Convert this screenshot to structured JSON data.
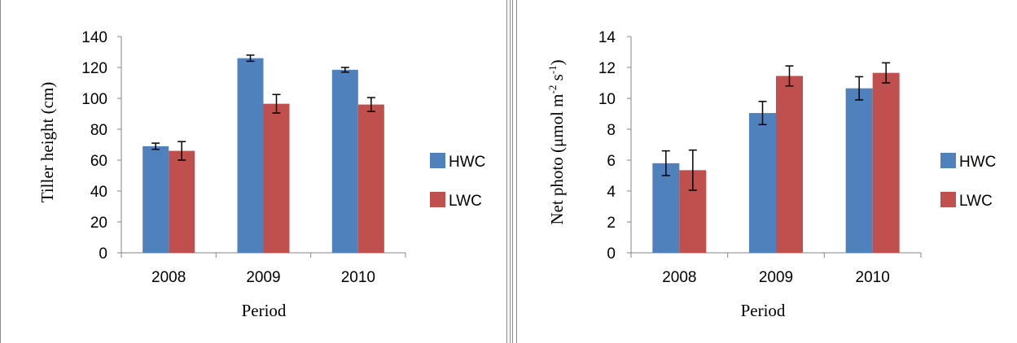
{
  "chart_data": [
    {
      "type": "bar",
      "categories": [
        "2008",
        "2009",
        "2010"
      ],
      "series": [
        {
          "name": "HWC",
          "values": [
            69,
            126,
            118.5
          ],
          "errors": [
            2,
            2,
            1.5
          ]
        },
        {
          "name": "LWC",
          "values": [
            66,
            96.5,
            96
          ],
          "errors": [
            6,
            6,
            4.5
          ]
        }
      ],
      "title": "",
      "xlabel": "Period",
      "ylabel": "Tiller height (cm)",
      "ylim": [
        0,
        140
      ],
      "yticks": [
        "0",
        "20",
        "40",
        "60",
        "80",
        "100",
        "120",
        "140"
      ],
      "grid": false,
      "legend": "right",
      "colors": {
        "HWC": "#4f81bd",
        "LWC": "#c0504d"
      }
    },
    {
      "type": "bar",
      "categories": [
        "2008",
        "2009",
        "2010"
      ],
      "series": [
        {
          "name": "HWC",
          "values": [
            5.8,
            9.05,
            10.65
          ],
          "errors": [
            0.8,
            0.75,
            0.75
          ]
        },
        {
          "name": "LWC",
          "values": [
            5.35,
            11.45,
            11.65
          ],
          "errors": [
            1.3,
            0.65,
            0.65
          ]
        }
      ],
      "title": "",
      "xlabel": "Period",
      "ylabel": "Net photo (μmol m⁻² s⁻¹)",
      "ylim": [
        0,
        14
      ],
      "yticks": [
        "0",
        "2",
        "4",
        "6",
        "8",
        "10",
        "12",
        "14"
      ],
      "grid": false,
      "legend": "right",
      "colors": {
        "HWC": "#4f81bd",
        "LWC": "#c0504d"
      }
    }
  ]
}
